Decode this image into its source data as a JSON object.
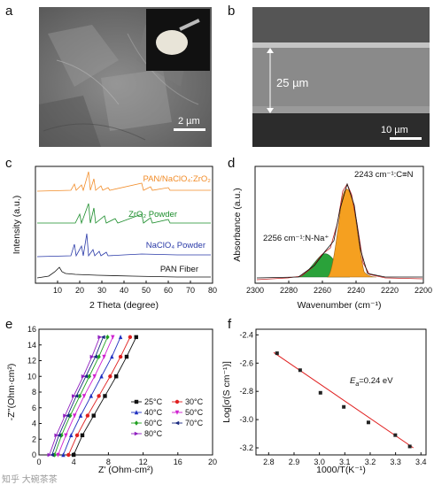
{
  "panels": {
    "a": {
      "label": "a",
      "scale_bar": "2 µm"
    },
    "b": {
      "label": "b",
      "scale_bar": "10 µm",
      "thickness": "25 µm"
    },
    "c": {
      "label": "c",
      "xlabel": "2 Theta (degree)",
      "ylabel": "Intensity (a.u.)",
      "xticks": [
        "10",
        "20",
        "30",
        "40",
        "50",
        "60",
        "70",
        "80"
      ],
      "series_labels": [
        {
          "text": "PAN/NaClO₄:ZrO₂",
          "color": "#f28c28"
        },
        {
          "text": "ZrO₂ Powder",
          "color": "#1a8c2a"
        },
        {
          "text": "NaClO₄ Powder",
          "color": "#2a3aa8"
        },
        {
          "text": "PAN Fiber",
          "color": "#111111"
        }
      ]
    },
    "d": {
      "label": "d",
      "xlabel": "Wavenumber (cm⁻¹)",
      "ylabel": "Absorbance (a.u.)",
      "xticks": [
        "2300",
        "2280",
        "2260",
        "2240",
        "2220",
        "2200"
      ],
      "peak1": "2243 cm⁻¹:C≡N",
      "peak2": "2256 cm⁻¹:N-Na⁺",
      "peak1_color": "#f5a020",
      "peak2_color": "#2aa23a"
    },
    "e": {
      "label": "e",
      "xlabel": "Z' (Ohm·cm²)",
      "ylabel": "-Z''(Ohm·cm²)",
      "xticks": [
        "0",
        "4",
        "8",
        "12",
        "16",
        "20"
      ],
      "yticks": [
        "0",
        "2",
        "4",
        "6",
        "8",
        "10",
        "12",
        "14",
        "16"
      ],
      "legend": [
        {
          "text": "25°C",
          "color": "#111111",
          "marker": "square"
        },
        {
          "text": "30°C",
          "color": "#e02020",
          "marker": "circle"
        },
        {
          "text": "40°C",
          "color": "#2030c0",
          "marker": "triangle"
        },
        {
          "text": "50°C",
          "color": "#d020d0",
          "marker": "triangle-down"
        },
        {
          "text": "60°C",
          "color": "#20a020",
          "marker": "diamond"
        },
        {
          "text": "70°C",
          "color": "#1a2a80",
          "marker": "triangle-left"
        },
        {
          "text": "80°C",
          "color": "#9020c0",
          "marker": "triangle-right"
        }
      ]
    },
    "f": {
      "label": "f",
      "xlabel": "1000/T(K⁻¹)",
      "ylabel": "Log[σ(S cm⁻¹)]",
      "annotation": "E",
      "annotation_sub": "a",
      "annotation_rest": "=0.24 eV",
      "xticks": [
        "2.8",
        "2.9",
        "3.0",
        "3.1",
        "3.2",
        "3.3",
        "3.4"
      ],
      "yticks": [
        "-2.4",
        "-2.6",
        "-2.8",
        "-3.0",
        "-3.2"
      ]
    }
  },
  "watermark": "知乎 大碗茶茶",
  "chart_data": [
    {
      "type": "line",
      "panel": "e",
      "xlabel": "Z' (Ohm·cm²)",
      "ylabel": "-Z''(Ohm·cm²)",
      "xlim": [
        0,
        20
      ],
      "ylim": [
        0,
        16
      ],
      "series": [
        {
          "name": "25°C",
          "x": [
            4.0,
            5.0,
            6.3,
            7.6,
            8.9,
            10.1,
            11.2
          ],
          "y": [
            0,
            2.5,
            5,
            7.5,
            10,
            12.5,
            15
          ]
        },
        {
          "name": "30°C",
          "x": [
            3.4,
            4.4,
            5.6,
            6.9,
            8.2,
            9.4,
            10.5
          ],
          "y": [
            0,
            2.5,
            5,
            7.5,
            10,
            12.5,
            15
          ]
        },
        {
          "name": "40°C",
          "x": [
            2.8,
            3.7,
            4.8,
            6.0,
            7.2,
            8.4,
            9.4
          ],
          "y": [
            0,
            2.5,
            5,
            7.5,
            10,
            12.5,
            15
          ]
        },
        {
          "name": "50°C",
          "x": [
            2.2,
            3.1,
            4.1,
            5.2,
            6.4,
            7.5,
            8.5
          ],
          "y": [
            0,
            2.5,
            5,
            7.5,
            10,
            12.5,
            15
          ]
        },
        {
          "name": "60°C",
          "x": [
            1.8,
            2.6,
            3.6,
            4.7,
            5.8,
            6.9,
            7.9
          ],
          "y": [
            0,
            2.5,
            5,
            7.5,
            10,
            12.5,
            15
          ]
        },
        {
          "name": "70°C",
          "x": [
            1.5,
            2.3,
            3.3,
            4.3,
            5.4,
            6.5,
            7.4
          ],
          "y": [
            0,
            2.5,
            5,
            7.5,
            10,
            12.5,
            15
          ]
        },
        {
          "name": "80°C",
          "x": [
            1.2,
            2.0,
            3.0,
            4.0,
            5.1,
            6.1,
            7.0
          ],
          "y": [
            0,
            2.5,
            5,
            7.5,
            10,
            12.5,
            15
          ]
        }
      ]
    },
    {
      "type": "scatter",
      "panel": "f",
      "xlabel": "1000/T(K⁻¹)",
      "ylabel": "Log[σ(S cm⁻¹)]",
      "xlim": [
        2.75,
        3.42
      ],
      "ylim": [
        -3.25,
        -2.36
      ],
      "x": [
        2.833,
        2.924,
        3.004,
        3.096,
        3.193,
        3.299,
        3.356
      ],
      "y": [
        -2.53,
        -2.65,
        -2.81,
        -2.91,
        -3.02,
        -3.11,
        -3.19
      ],
      "fit": {
        "x": [
          2.82,
          3.37
        ],
        "y": [
          -2.525,
          -3.2
        ],
        "color": "#e02020"
      }
    }
  ]
}
